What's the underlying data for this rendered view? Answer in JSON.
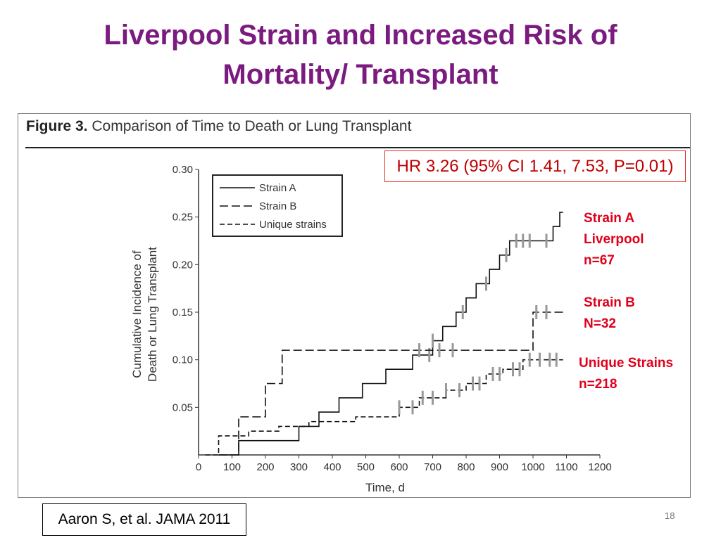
{
  "slide": {
    "title_line1": "Liverpool Strain and Increased Risk of",
    "title_line2": "Mortality/ Transplant",
    "title_color": "#7b1a7f",
    "figure_label": "Figure 3.",
    "figure_caption": "Comparison of Time to Death or Lung Transplant",
    "hazard_ratio": "HR 3.26 (95% CI 1.41, 7.53, P=0.01)",
    "annotations": {
      "strain_a": [
        "Strain A",
        "Liverpool",
        "n=67"
      ],
      "strain_b": [
        "Strain B",
        "N=32"
      ],
      "unique": [
        "Unique Strains",
        "n=218"
      ]
    },
    "annotation_color": "#e0001b",
    "citation": "Aaron S, et al. JAMA 2011",
    "page_number": "18"
  },
  "chart_data": {
    "type": "line",
    "step": true,
    "title": "",
    "xlabel": "Time, d",
    "ylabel_lines": [
      "Cumulative Incidence of",
      "Death or Lung Transplant"
    ],
    "xlim": [
      0,
      1200
    ],
    "ylim": [
      0,
      0.3
    ],
    "x_ticks": [
      0,
      100,
      200,
      300,
      400,
      500,
      600,
      700,
      800,
      900,
      1000,
      1100,
      1200
    ],
    "y_ticks": [
      0.05,
      0.1,
      0.15,
      0.2,
      0.25,
      0.3
    ],
    "y_tick_labels": [
      "0.05",
      "0.10",
      "0.15",
      "0.20",
      "0.25",
      "0.30"
    ],
    "legend": {
      "placement": "top-left",
      "entries": [
        "Strain A",
        "Strain B",
        "Unique strains"
      ]
    },
    "series": [
      {
        "name": "Strain A",
        "style": "solid",
        "x": [
          60,
          120,
          300,
          360,
          420,
          490,
          560,
          640,
          700,
          730,
          770,
          800,
          830,
          870,
          900,
          930,
          1060,
          1080,
          1090
        ],
        "y": [
          0.0,
          0.015,
          0.03,
          0.045,
          0.06,
          0.075,
          0.09,
          0.105,
          0.12,
          0.135,
          0.15,
          0.165,
          0.18,
          0.195,
          0.21,
          0.225,
          0.24,
          0.255,
          0.255
        ],
        "censored": [
          690,
          700,
          790,
          860,
          920,
          950,
          970,
          990,
          1040
        ]
      },
      {
        "name": "Strain B",
        "style": "long-dash",
        "x": [
          60,
          120,
          200,
          250,
          1000,
          1060,
          1090
        ],
        "y": [
          0.0,
          0.04,
          0.075,
          0.11,
          0.15,
          0.15,
          0.15
        ],
        "censored": [
          660,
          720,
          760,
          1010,
          1040
        ]
      },
      {
        "name": "Unique strains",
        "style": "short-dash",
        "x": [
          20,
          60,
          150,
          240,
          330,
          470,
          600,
          660,
          740,
          800,
          860,
          910,
          970,
          1090
        ],
        "y": [
          0.0,
          0.02,
          0.025,
          0.03,
          0.035,
          0.04,
          0.05,
          0.06,
          0.068,
          0.075,
          0.085,
          0.09,
          0.1,
          0.1
        ],
        "censored": [
          600,
          640,
          670,
          700,
          740,
          780,
          820,
          840,
          880,
          900,
          940,
          960,
          990,
          1020,
          1050,
          1070
        ]
      }
    ]
  }
}
